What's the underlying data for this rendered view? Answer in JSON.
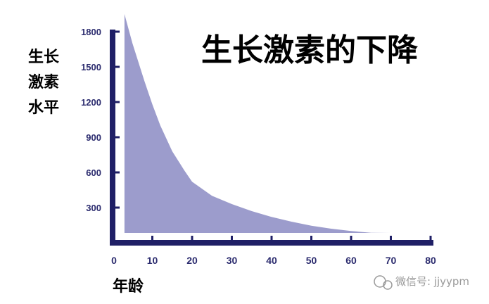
{
  "chart_data": {
    "type": "area",
    "title": "生长激素的下降",
    "ylabel_lines": [
      "生长",
      "激素",
      "水平"
    ],
    "xlabel": "年龄",
    "x_ticks": [
      0,
      10,
      20,
      30,
      40,
      50,
      60,
      70,
      80
    ],
    "y_ticks": [
      300,
      600,
      900,
      1200,
      1500,
      1800
    ],
    "xlim": [
      0,
      80
    ],
    "ylim": [
      0,
      1950
    ],
    "x": [
      3,
      5,
      8,
      10,
      12,
      15,
      18,
      20,
      25,
      30,
      35,
      40,
      45,
      50,
      55,
      60,
      65,
      70,
      75,
      78,
      80
    ],
    "values": [
      1950,
      1700,
      1380,
      1180,
      1000,
      780,
      620,
      520,
      400,
      330,
      270,
      220,
      180,
      145,
      120,
      100,
      85,
      75,
      65,
      55,
      30
    ],
    "area_color": "#9c9ccc",
    "axis_color": "#1f1f66",
    "grid": false
  },
  "watermark": {
    "icon": "wechat-icon",
    "text": "微信号: jjyypm"
  }
}
